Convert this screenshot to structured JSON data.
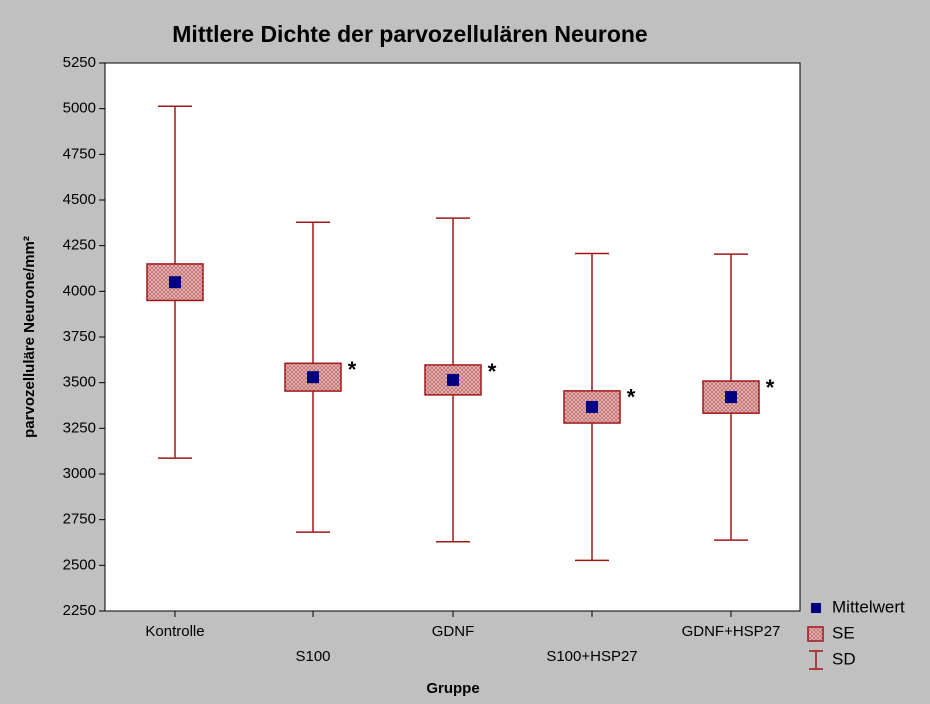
{
  "chart_data": {
    "type": "errorbox",
    "title": "Mittlere Dichte der parvozellulären Neurone",
    "xlabel": "Gruppe",
    "ylabel": "parvozelluläre Neurone/mm²",
    "categories": [
      "Kontrolle",
      "S100",
      "GDNF",
      "S100+HSP27",
      "GDNF+HSP27"
    ],
    "means": [
      4050,
      3530,
      3515,
      3367,
      3421
    ],
    "se": [
      100,
      76,
      82,
      88,
      88
    ],
    "sd": [
      963,
      848,
      886,
      840,
      783
    ],
    "annotations": [
      null,
      "*",
      "*",
      "*",
      "*"
    ],
    "legend": [
      "Mittelwert",
      "SE",
      "SD"
    ],
    "mean_color": "#000080",
    "se_color": "#a01818",
    "sd_color": "#a01818",
    "ylim": [
      2250,
      5250
    ],
    "yticks": [
      2250,
      2500,
      2750,
      3000,
      3250,
      3500,
      3750,
      4000,
      4250,
      4500,
      4750,
      5000,
      5250
    ],
    "legend_position": "lower right outside"
  }
}
